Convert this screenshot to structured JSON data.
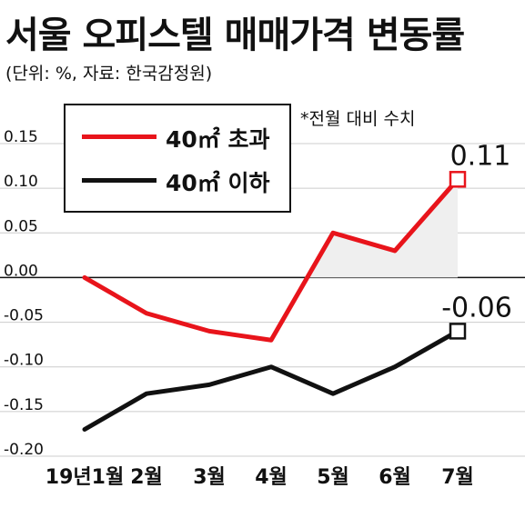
{
  "header": {
    "title": "서울 오피스텔 매매가격 변동률",
    "source": "(단위: %, 자료: 한국감정원)",
    "note": "*전월 대비 수치"
  },
  "colors": {
    "over40": "#e8141b",
    "under40": "#111111",
    "shade": "#efefef",
    "grid": "#cccccc"
  },
  "chart_data": {
    "type": "line",
    "title": "서울 오피스텔 매매가격 변동률",
    "categories": [
      "19년1월",
      "2월",
      "3월",
      "4월",
      "5월",
      "6월",
      "7월"
    ],
    "series": [
      {
        "name": "40㎡ 초과",
        "values": [
          0.0,
          -0.04,
          -0.06,
          -0.07,
          0.05,
          0.03,
          0.11
        ]
      },
      {
        "name": "40㎡ 이하",
        "values": [
          -0.17,
          -0.13,
          -0.12,
          -0.1,
          -0.13,
          -0.1,
          -0.06
        ]
      }
    ],
    "yticks": [
      "0.15",
      "0.10",
      "0.05",
      "0.00",
      "-0.05",
      "-0.10",
      "-0.15",
      "-0.20"
    ],
    "ytick_values": [
      0.15,
      0.1,
      0.05,
      0.0,
      -0.05,
      -0.1,
      -0.15,
      -0.2
    ],
    "ylim": [
      -0.2,
      0.15
    ],
    "end_labels": [
      "0.11",
      "-0.06"
    ],
    "grid": true,
    "legend": "top-left"
  }
}
